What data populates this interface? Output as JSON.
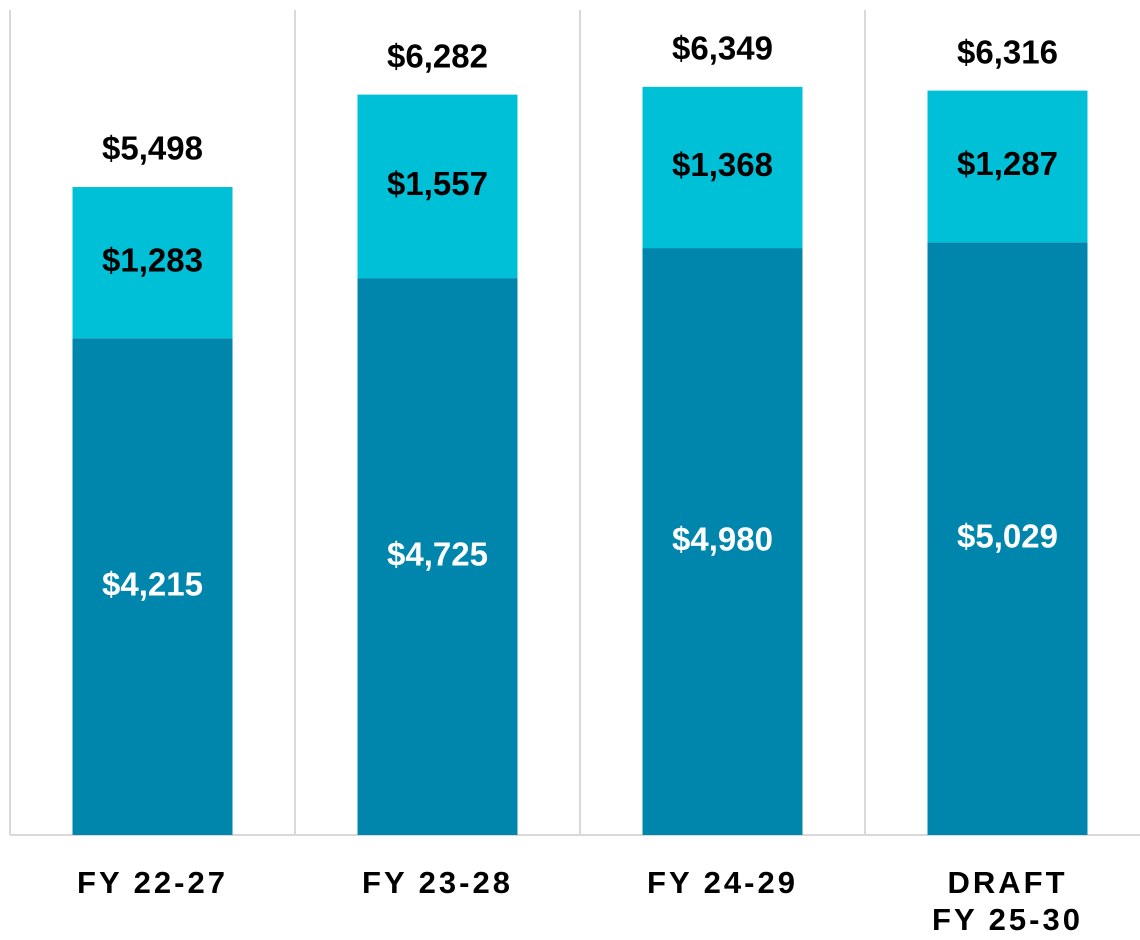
{
  "chart_data": {
    "type": "stacked_bar",
    "categories": [
      "FY 22-27",
      "FY 23-28",
      "FY 24-29",
      "DRAFT\nFY 25-30"
    ],
    "series": [
      {
        "color": "#0086ad",
        "label_color": "#ffffff",
        "values": [
          4215,
          4725,
          4980,
          5029
        ],
        "value_labels": [
          "$4,215",
          "$4,725",
          "$4,980",
          "$5,029"
        ]
      },
      {
        "color": "#00c0d8",
        "label_color": "#000000",
        "values": [
          1283,
          1557,
          1368,
          1287
        ],
        "value_labels": [
          "$1,283",
          "$1,557",
          "$1,368",
          "$1,287"
        ]
      }
    ],
    "totals": {
      "values": [
        5498,
        6282,
        6349,
        6316
      ],
      "value_labels": [
        "$5,498",
        "$6,282",
        "$6,349",
        "$6,316"
      ]
    },
    "ylim": [
      0,
      7000
    ]
  }
}
